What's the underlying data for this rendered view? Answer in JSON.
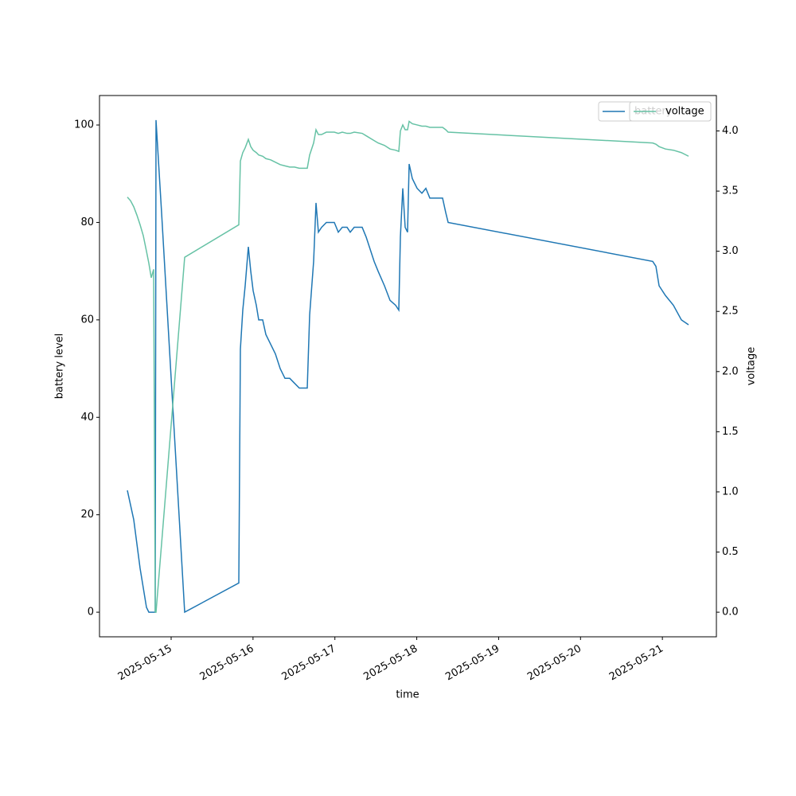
{
  "chart_data": {
    "type": "line",
    "x_label": "time",
    "y_label": "battery level",
    "y2_label": "voltage",
    "x": [
      "2025-05-14T11:10",
      "2025-05-14T12:06",
      "2025-05-14T13:02",
      "2025-05-14T13:58",
      "2025-05-14T14:54",
      "2025-05-14T15:50",
      "2025-05-14T16:46",
      "2025-05-14T17:28",
      "2025-05-14T18:10",
      "2025-05-14T18:52",
      "2025-05-14T19:20",
      "2025-05-14T19:34",
      "2025-05-14T21:12",
      "2025-05-15T03:58",
      "2025-05-15T19:50",
      "2025-05-15T20:18",
      "2025-05-15T21:00",
      "2025-05-15T21:42",
      "2025-05-15T22:38",
      "2025-05-15T23:20",
      "2025-05-16T00:02",
      "2025-05-16T00:58",
      "2025-05-16T01:40",
      "2025-05-16T02:50",
      "2025-05-16T03:46",
      "2025-05-16T05:10",
      "2025-05-16T06:34",
      "2025-05-16T07:58",
      "2025-05-16T09:22",
      "2025-05-16T10:46",
      "2025-05-16T12:10",
      "2025-05-16T13:34",
      "2025-05-16T15:54",
      "2025-05-16T16:36",
      "2025-05-16T17:46",
      "2025-05-16T18:28",
      "2025-05-16T19:10",
      "2025-05-16T20:06",
      "2025-05-16T21:30",
      "2025-05-16T23:50",
      "2025-05-17T01:00",
      "2025-05-17T02:10",
      "2025-05-17T03:34",
      "2025-05-17T04:30",
      "2025-05-17T05:40",
      "2025-05-17T08:00",
      "2025-05-17T09:10",
      "2025-05-17T11:30",
      "2025-05-17T12:40",
      "2025-05-17T14:32",
      "2025-05-17T16:10",
      "2025-05-17T17:48",
      "2025-05-17T18:44",
      "2025-05-17T19:12",
      "2025-05-17T19:54",
      "2025-05-17T20:36",
      "2025-05-17T21:18",
      "2025-05-17T21:46",
      "2025-05-17T22:42",
      "2025-05-18T00:06",
      "2025-05-18T01:30",
      "2025-05-18T02:40",
      "2025-05-18T03:50",
      "2025-05-18T07:34",
      "2025-05-18T08:30",
      "2025-05-18T09:12",
      "2025-05-20T21:10",
      "2025-05-20T22:06",
      "2025-05-20T23:02",
      "2025-05-21T00:54",
      "2025-05-21T03:14",
      "2025-05-21T05:34",
      "2025-05-21T07:40"
    ],
    "series": [
      {
        "name": "battery",
        "color": "#1f77b4",
        "values": [
          25,
          22,
          19,
          14,
          9,
          5,
          1,
          0,
          0,
          0,
          0,
          101,
          82,
          0,
          6,
          54,
          62,
          67,
          75,
          70,
          66,
          63,
          60,
          60,
          57,
          55,
          53,
          50,
          48,
          48,
          47,
          46,
          46,
          61,
          72,
          84,
          78,
          79,
          80,
          80,
          78,
          79,
          79,
          78,
          79,
          79,
          77,
          72,
          70,
          67,
          64,
          63,
          62,
          77,
          87,
          79,
          78,
          92,
          89,
          87,
          86,
          87,
          85,
          85,
          82,
          80,
          72,
          71,
          67,
          65,
          63,
          60,
          59
        ]
      },
      {
        "name": "voltage",
        "color": "#66c2a5",
        "axis": "y2",
        "values": [
          3.45,
          3.42,
          3.37,
          3.3,
          3.22,
          3.13,
          3.0,
          2.9,
          2.78,
          2.85,
          0,
          0,
          0.57,
          2.95,
          3.22,
          3.75,
          3.82,
          3.86,
          3.93,
          3.87,
          3.84,
          3.82,
          3.8,
          3.79,
          3.77,
          3.76,
          3.74,
          3.72,
          3.71,
          3.7,
          3.7,
          3.69,
          3.69,
          3.8,
          3.9,
          4.01,
          3.97,
          3.97,
          3.99,
          3.99,
          3.98,
          3.99,
          3.98,
          3.98,
          3.99,
          3.98,
          3.96,
          3.92,
          3.9,
          3.88,
          3.85,
          3.84,
          3.83,
          4.0,
          4.05,
          4.01,
          4.01,
          4.08,
          4.06,
          4.05,
          4.04,
          4.04,
          4.03,
          4.03,
          4.01,
          3.99,
          3.9,
          3.89,
          3.87,
          3.85,
          3.84,
          3.82,
          3.79
        ]
      }
    ],
    "xlim": [
      "2025-05-14T03:00",
      "2025-05-21T15:50"
    ],
    "xticks": [
      "2025-05-15",
      "2025-05-16",
      "2025-05-17",
      "2025-05-18",
      "2025-05-19",
      "2025-05-20",
      "2025-05-21"
    ],
    "ylim": [
      -5.05,
      106.05
    ],
    "yticks": [
      0,
      20,
      40,
      60,
      80,
      100
    ],
    "y2lim": [
      -0.2045,
      4.2945
    ],
    "y2ticks": [
      {
        "value": 0,
        "label": "0.0"
      },
      0.5,
      {
        "value": 1,
        "label": "1.0"
      },
      1.5,
      {
        "value": 2,
        "label": "2.0"
      },
      2.5,
      {
        "value": 3,
        "label": "3.0"
      },
      3.5,
      {
        "value": 4,
        "label": "4.0"
      }
    ],
    "legend": "upper right"
  }
}
